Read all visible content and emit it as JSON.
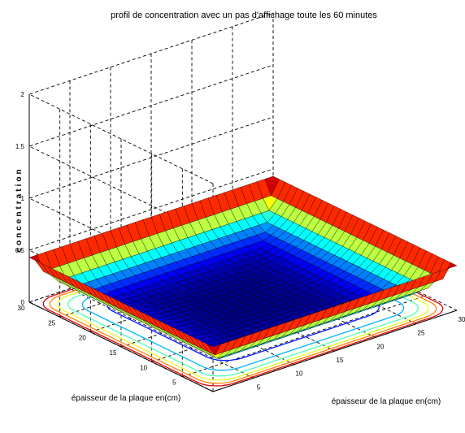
{
  "chart_data": {
    "type": "surface",
    "title": "profil de concentration avec un pas d'affichage toute les 60 minutes",
    "xlabel": "épaisseur de la plaque en(cm)",
    "ylabel": "épaisseur de la plaque en(cm)",
    "zlabel": "concentration",
    "x_ticks": [
      "5",
      "10",
      "15",
      "20",
      "25",
      "30"
    ],
    "y_ticks": [
      "5",
      "10",
      "15",
      "20",
      "25",
      "30"
    ],
    "z_ticks": [
      "0",
      "0.5",
      "1",
      "1.5",
      "2"
    ],
    "xlim": [
      0,
      30
    ],
    "ylim": [
      0,
      30
    ],
    "zlim": [
      0,
      2
    ],
    "grid": true,
    "colormap": "jet",
    "contour_projection": true,
    "surface": {
      "edge_value": 0.43,
      "interior_value": 0.03,
      "decay_length_cm": 2.5
    }
  }
}
